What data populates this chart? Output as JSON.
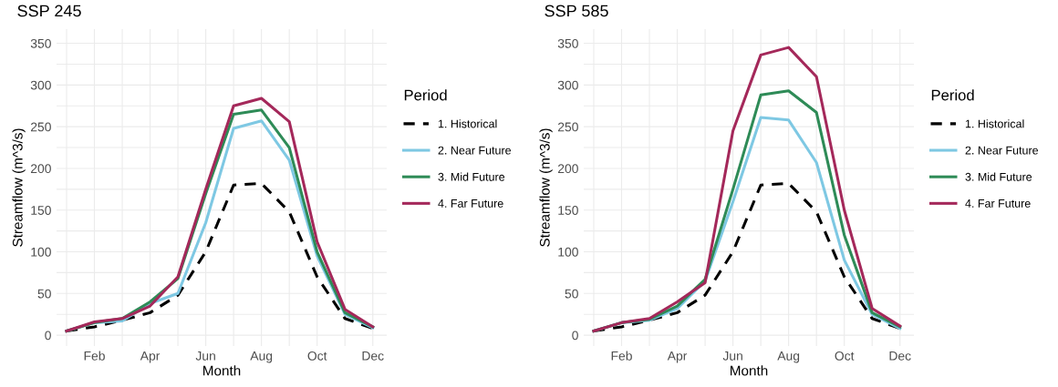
{
  "chart_data": [
    {
      "type": "line",
      "title": "SSP 245",
      "xlabel": "Month",
      "ylabel": "Streamflow (m^3/s)",
      "legend_title": "Period",
      "legend": "right",
      "grid": true,
      "categories": [
        null,
        "Feb",
        null,
        "Apr",
        null,
        "Jun",
        null,
        "Aug",
        null,
        "Oct",
        null,
        "Dec"
      ],
      "ylim": [
        -13,
        367
      ],
      "yticks": [
        0,
        {
          "value": 25,
          "label": null
        },
        50,
        {
          "value": 75,
          "label": null
        },
        100,
        {
          "value": 125,
          "label": null
        },
        150,
        {
          "value": 175,
          "label": null
        },
        200,
        {
          "value": 225,
          "label": null
        },
        250,
        {
          "value": 275,
          "label": null
        },
        300,
        {
          "value": 325,
          "label": null
        },
        350
      ],
      "series": [
        {
          "name": "1. Historical",
          "color": "#000000",
          "line_style": "dashed",
          "values": [
            5,
            10,
            18,
            27,
            48,
            100,
            180,
            182,
            148,
            70,
            20,
            8
          ]
        },
        {
          "name": "2. Near Future",
          "color": "#7ec8e3",
          "line_style": "solid",
          "values": [
            5,
            15,
            17,
            38,
            50,
            135,
            248,
            257,
            210,
            95,
            25,
            9
          ]
        },
        {
          "name": "3. Mid Future",
          "color": "#2e8b57",
          "line_style": "solid",
          "values": [
            5,
            15,
            20,
            40,
            68,
            170,
            265,
            270,
            225,
            100,
            27,
            10
          ]
        },
        {
          "name": "4. Far Future",
          "color": "#a4285a",
          "line_style": "solid",
          "values": [
            5,
            16,
            20,
            35,
            70,
            175,
            275,
            284,
            256,
            112,
            31,
            10
          ]
        }
      ]
    },
    {
      "type": "line",
      "title": "SSP 585",
      "xlabel": "Month",
      "ylabel": "Streamflow (m^3/s)",
      "legend_title": "Period",
      "legend": "right",
      "grid": true,
      "categories": [
        null,
        "Feb",
        null,
        "Apr",
        null,
        "Jun",
        null,
        "Aug",
        null,
        "Oct",
        null,
        "Dec"
      ],
      "ylim": [
        -13,
        367
      ],
      "yticks": [
        0,
        {
          "value": 25,
          "label": null
        },
        50,
        {
          "value": 75,
          "label": null
        },
        100,
        {
          "value": 125,
          "label": null
        },
        150,
        {
          "value": 175,
          "label": null
        },
        200,
        {
          "value": 225,
          "label": null
        },
        250,
        {
          "value": 275,
          "label": null
        },
        300,
        {
          "value": 325,
          "label": null
        },
        350
      ],
      "series": [
        {
          "name": "1. Historical",
          "color": "#000000",
          "line_style": "dashed",
          "values": [
            5,
            10,
            18,
            27,
            48,
            100,
            180,
            182,
            148,
            70,
            20,
            8
          ]
        },
        {
          "name": "2. Near Future",
          "color": "#7ec8e3",
          "line_style": "solid",
          "values": [
            5,
            15,
            18,
            32,
            65,
            160,
            261,
            258,
            207,
            90,
            25,
            8
          ]
        },
        {
          "name": "3. Mid Future",
          "color": "#2e8b57",
          "line_style": "solid",
          "values": [
            5,
            15,
            19,
            35,
            67,
            175,
            288,
            293,
            267,
            120,
            27,
            10
          ]
        },
        {
          "name": "4. Far Future",
          "color": "#a4285a",
          "line_style": "solid",
          "values": [
            5,
            15,
            20,
            40,
            63,
            245,
            336,
            345,
            310,
            150,
            32,
            11
          ]
        }
      ]
    }
  ]
}
